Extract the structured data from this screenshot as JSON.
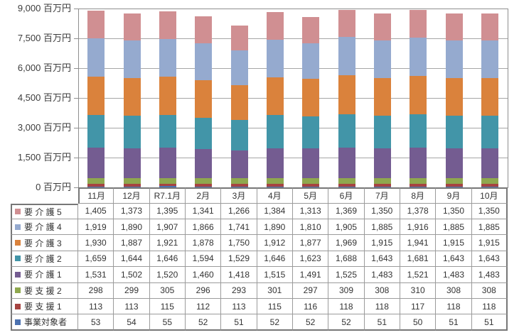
{
  "chart_data": {
    "type": "bar",
    "stacked": true,
    "title": "",
    "unit": "百万円",
    "y_tick_label_format": "{value} 百万円",
    "categories": [
      "11月",
      "12月",
      "R7.1月",
      "2月",
      "3月",
      "4月",
      "5月",
      "6月",
      "7月",
      "8月",
      "9月",
      "10月"
    ],
    "series": [
      {
        "name": "要 介 護 5",
        "color": "#D08F92",
        "values": [
          1405,
          1373,
          1395,
          1341,
          1266,
          1384,
          1313,
          1369,
          1350,
          1378,
          1350,
          1350
        ]
      },
      {
        "name": "要 介 護 4",
        "color": "#95AACF",
        "values": [
          1919,
          1890,
          1907,
          1866,
          1741,
          1890,
          1810,
          1905,
          1885,
          1916,
          1885,
          1885
        ]
      },
      {
        "name": "要 介 護 3",
        "color": "#DA823C",
        "values": [
          1930,
          1887,
          1921,
          1878,
          1750,
          1912,
          1877,
          1969,
          1915,
          1941,
          1915,
          1915
        ]
      },
      {
        "name": "要 介 護 2",
        "color": "#4295A8",
        "values": [
          1659,
          1644,
          1646,
          1594,
          1529,
          1646,
          1623,
          1688,
          1643,
          1681,
          1643,
          1643
        ]
      },
      {
        "name": "要 介 護 1",
        "color": "#745C91",
        "values": [
          1531,
          1502,
          1520,
          1460,
          1418,
          1515,
          1491,
          1525,
          1483,
          1521,
          1483,
          1483
        ]
      },
      {
        "name": "要 支 援 2",
        "color": "#8FA84E",
        "values": [
          298,
          299,
          305,
          296,
          293,
          301,
          297,
          309,
          308,
          310,
          308,
          308
        ]
      },
      {
        "name": "要 支 援 1",
        "color": "#A64441",
        "values": [
          113,
          113,
          115,
          112,
          113,
          115,
          116,
          118,
          118,
          117,
          118,
          118
        ]
      },
      {
        "name": "事業対象者",
        "color": "#4C72B0",
        "values": [
          53,
          54,
          55,
          52,
          51,
          52,
          52,
          52,
          51,
          50,
          51,
          51
        ]
      }
    ],
    "stack_order_bottom_to_top": [
      "事業対象者",
      "要 支 援 1",
      "要 支 援 2",
      "要 介 護 1",
      "要 介 護 2",
      "要 介 護 3",
      "要 介 護 4",
      "要 介 護 5"
    ],
    "y_ticks": [
      0,
      1500,
      3000,
      4500,
      6000,
      7500,
      9000
    ],
    "ylim": [
      0,
      9000
    ],
    "grid": true,
    "legend_position": "table-rows-left"
  },
  "style_colors": {
    "gridline": "#A6A6A6",
    "plot_border": "#8F8F8F",
    "table_border_inner": "#9B9B9B",
    "table_border_outer": "#777777",
    "text": "#3A3A3A"
  }
}
